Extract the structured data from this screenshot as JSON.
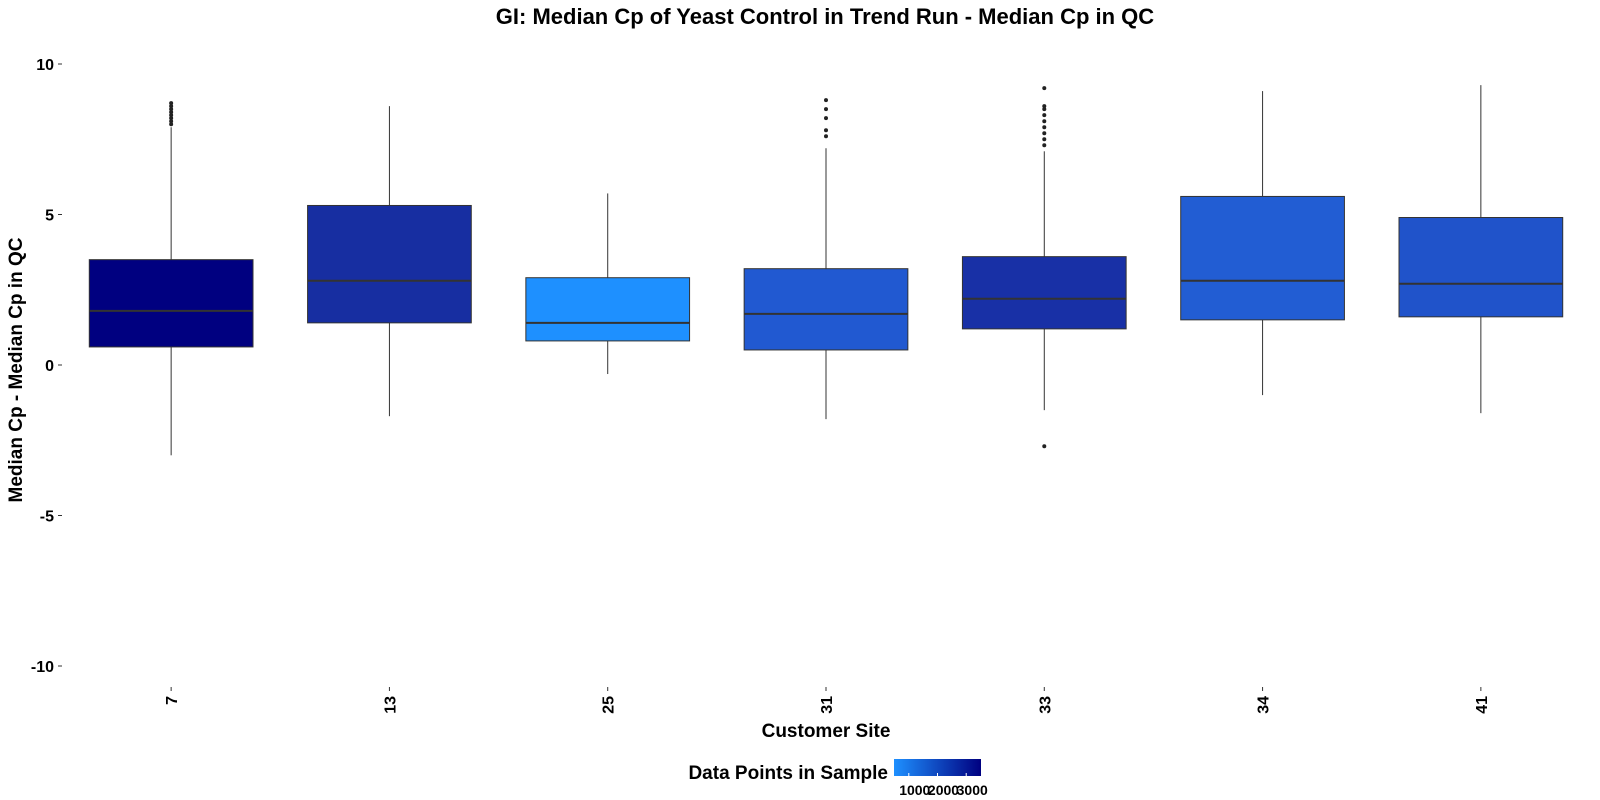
{
  "chart_data": {
    "type": "boxplot",
    "title": "GI: Median Cp of Yeast Control in Trend Run - Median Cp in QC",
    "xlabel": "Customer Site",
    "ylabel": "Median Cp - Median Cp in QC",
    "ylim": [
      -11,
      10
    ],
    "yticks": [
      10,
      5,
      0,
      -5,
      -10
    ],
    "grid": false,
    "categories": [
      "7",
      "13",
      "25",
      "31",
      "33",
      "34",
      "41"
    ],
    "boxes": [
      {
        "site": "7",
        "lower_whisker": -3.0,
        "q1": 0.6,
        "median": 1.8,
        "q3": 3.5,
        "upper_whisker": 7.9,
        "outliers": [
          8.0,
          8.1,
          8.2,
          8.3,
          8.4,
          8.5,
          8.6,
          8.7
        ],
        "fill": "#000080"
      },
      {
        "site": "13",
        "lower_whisker": -1.7,
        "q1": 1.4,
        "median": 2.8,
        "q3": 5.3,
        "upper_whisker": 8.6,
        "outliers": [],
        "fill": "#172EA1"
      },
      {
        "site": "25",
        "lower_whisker": -0.3,
        "q1": 0.8,
        "median": 1.4,
        "q3": 2.9,
        "upper_whisker": 5.7,
        "outliers": [],
        "fill": "#1E90FF"
      },
      {
        "site": "31",
        "lower_whisker": -1.8,
        "q1": 0.5,
        "median": 1.7,
        "q3": 3.2,
        "upper_whisker": 7.2,
        "outliers": [
          7.6,
          7.8,
          8.2,
          8.5,
          8.8
        ],
        "fill": "#2159D1"
      },
      {
        "site": "33",
        "lower_whisker": -1.5,
        "q1": 1.2,
        "median": 2.2,
        "q3": 3.6,
        "upper_whisker": 7.1,
        "outliers": [
          -2.7,
          7.3,
          7.5,
          7.7,
          7.9,
          8.1,
          8.3,
          8.5,
          8.6,
          9.2
        ],
        "fill": "#1830A6"
      },
      {
        "site": "34",
        "lower_whisker": -1.0,
        "q1": 1.5,
        "median": 2.8,
        "q3": 5.6,
        "upper_whisker": 9.1,
        "outliers": [],
        "fill": "#225DD3"
      },
      {
        "site": "41",
        "lower_whisker": -1.6,
        "q1": 1.6,
        "median": 2.7,
        "q3": 4.9,
        "upper_whisker": 9.3,
        "outliers": [],
        "fill": "#2053CA"
      }
    ],
    "legend": {
      "title": "Data Points in Sample",
      "placement": "bottom",
      "tick_labels": [
        "1000",
        "2000",
        "3000"
      ],
      "color_low": "#1E90FF",
      "color_high": "#000080"
    }
  }
}
